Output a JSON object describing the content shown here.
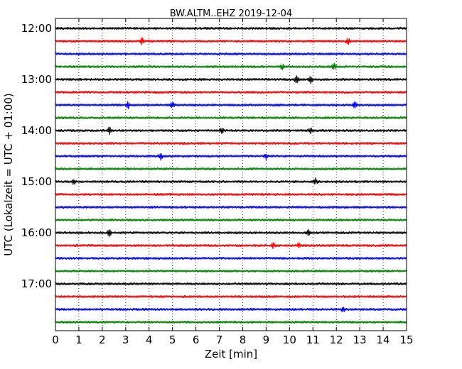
{
  "chart_data": {
    "type": "line",
    "title": "BW.ALTM..EHZ 2019-12-04",
    "xlabel": "Zeit  [min]",
    "ylabel": "UTC (Lokalzeit = UTC + 01:00)",
    "xlim": [
      0,
      15
    ],
    "x_ticks": [
      "0",
      "1",
      "2",
      "3",
      "4",
      "5",
      "6",
      "7",
      "8",
      "9",
      "10",
      "11",
      "12",
      "13",
      "14",
      "15"
    ],
    "y_ticks": [
      "12:00",
      "13:00",
      "14:00",
      "15:00",
      "16:00",
      "17:00"
    ],
    "grid": "vertical dotted",
    "trace_colors": [
      "#000000",
      "#ff0000",
      "#0000ff",
      "#008000"
    ],
    "traces": [
      {
        "start": "12:00",
        "color": "#000000",
        "events": []
      },
      {
        "start": "12:15",
        "color": "#ff0000",
        "events": [
          3.7,
          12.5
        ]
      },
      {
        "start": "12:30",
        "color": "#0000ff",
        "events": []
      },
      {
        "start": "12:45",
        "color": "#008000",
        "events": [
          9.7,
          11.9
        ]
      },
      {
        "start": "13:00",
        "color": "#000000",
        "events": [
          10.3,
          10.9
        ]
      },
      {
        "start": "13:15",
        "color": "#ff0000",
        "events": []
      },
      {
        "start": "13:30",
        "color": "#0000ff",
        "events": [
          3.1,
          5.0,
          12.8
        ]
      },
      {
        "start": "13:45",
        "color": "#008000",
        "events": []
      },
      {
        "start": "14:00",
        "color": "#000000",
        "events": [
          2.3,
          7.1,
          10.9
        ]
      },
      {
        "start": "14:15",
        "color": "#ff0000",
        "events": []
      },
      {
        "start": "14:30",
        "color": "#0000ff",
        "events": [
          4.5,
          9.0
        ]
      },
      {
        "start": "14:45",
        "color": "#008000",
        "events": []
      },
      {
        "start": "15:00",
        "color": "#000000",
        "events": [
          0.8,
          11.1
        ]
      },
      {
        "start": "15:15",
        "color": "#ff0000",
        "events": []
      },
      {
        "start": "15:30",
        "color": "#0000ff",
        "events": []
      },
      {
        "start": "15:45",
        "color": "#008000",
        "events": []
      },
      {
        "start": "16:00",
        "color": "#000000",
        "events": [
          2.3,
          10.8
        ]
      },
      {
        "start": "16:15",
        "color": "#ff0000",
        "events": [
          9.3,
          10.4
        ]
      },
      {
        "start": "16:30",
        "color": "#0000ff",
        "events": []
      },
      {
        "start": "16:45",
        "color": "#008000",
        "events": []
      },
      {
        "start": "17:00",
        "color": "#000000",
        "events": []
      },
      {
        "start": "17:15",
        "color": "#ff0000",
        "events": []
      },
      {
        "start": "17:30",
        "color": "#0000ff",
        "events": [
          12.3
        ]
      },
      {
        "start": "17:45",
        "color": "#008000",
        "events": []
      }
    ]
  }
}
